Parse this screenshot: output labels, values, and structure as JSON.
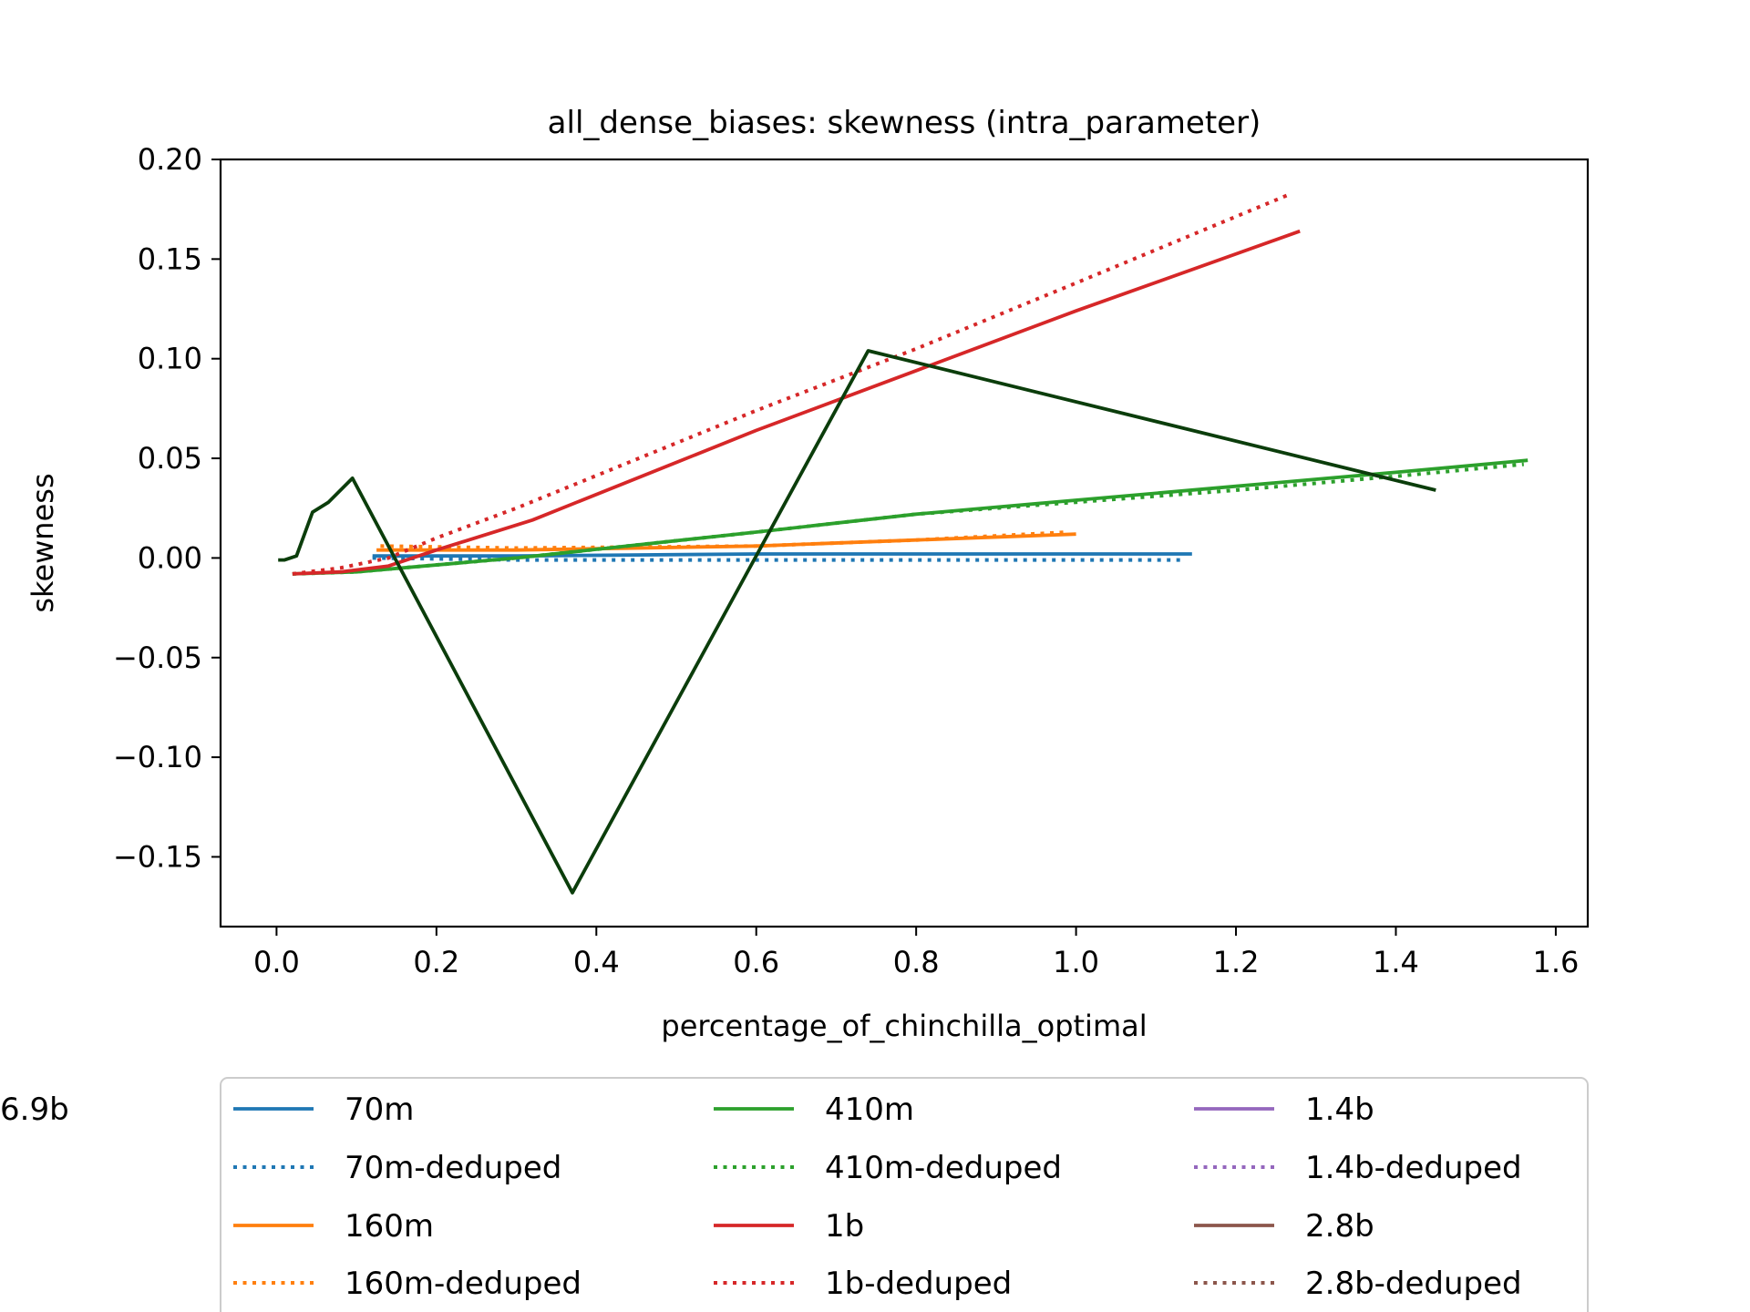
{
  "chart_data": {
    "type": "line",
    "title": "all_dense_biases: skewness (intra_parameter)",
    "xlabel": "percentage_of_chinchilla_optimal",
    "ylabel": "skewness",
    "xlim": [
      -0.07,
      1.64
    ],
    "ylim": [
      -0.185,
      0.2
    ],
    "xticks": [
      0.0,
      0.2,
      0.4,
      0.6,
      0.8,
      1.0,
      1.2,
      1.4,
      1.6
    ],
    "xtick_labels": [
      "0.0",
      "0.2",
      "0.4",
      "0.6",
      "0.8",
      "1.0",
      "1.2",
      "1.4",
      "1.6"
    ],
    "yticks": [
      0.2,
      0.15,
      0.1,
      0.05,
      0.0,
      -0.05,
      -0.1,
      -0.15
    ],
    "ytick_labels": [
      "0.20",
      "0.15",
      "0.10",
      "0.05",
      "0.00",
      "−0.05",
      "−0.10",
      "−0.15"
    ],
    "grid": false,
    "legend_position": "bottom-outside",
    "series": [
      {
        "name": "70m",
        "color": "#1f77b4",
        "style": "solid",
        "x": [
          0.12,
          0.3,
          0.6,
          1.0,
          1.145
        ],
        "y": [
          0.001,
          0.001,
          0.002,
          0.002,
          0.002
        ]
      },
      {
        "name": "70m-deduped",
        "color": "#1f77b4",
        "style": "dotted",
        "x": [
          0.12,
          0.3,
          0.6,
          1.0,
          1.135
        ],
        "y": [
          0.0,
          -0.001,
          -0.001,
          -0.001,
          -0.001
        ]
      },
      {
        "name": "160m",
        "color": "#ff7f0e",
        "style": "solid",
        "x": [
          0.125,
          0.3,
          0.6,
          0.8,
          1.0
        ],
        "y": [
          0.004,
          0.004,
          0.006,
          0.009,
          0.012
        ]
      },
      {
        "name": "160m-deduped",
        "color": "#ff7f0e",
        "style": "dotted",
        "x": [
          0.13,
          0.3,
          0.6,
          0.8,
          0.99
        ],
        "y": [
          0.006,
          0.005,
          0.006,
          0.009,
          0.013
        ]
      },
      {
        "name": "410m",
        "color": "#2ca02c",
        "style": "solid",
        "x": [
          0.02,
          0.1,
          0.3,
          0.6,
          0.8,
          1.0,
          1.2,
          1.4,
          1.565
        ],
        "y": [
          -0.008,
          -0.007,
          0.0,
          0.013,
          0.022,
          0.029,
          0.036,
          0.043,
          0.049
        ]
      },
      {
        "name": "410m-deduped",
        "color": "#2ca02c",
        "style": "dotted",
        "x": [
          0.02,
          0.1,
          0.3,
          0.6,
          0.8,
          1.0,
          1.2,
          1.4,
          1.56
        ],
        "y": [
          -0.008,
          -0.007,
          0.0,
          0.013,
          0.022,
          0.028,
          0.034,
          0.041,
          0.047
        ]
      },
      {
        "name": "1b",
        "color": "#d62728",
        "style": "solid",
        "x": [
          0.02,
          0.08,
          0.14,
          0.2,
          0.32,
          0.6,
          0.8,
          1.0,
          1.28
        ],
        "y": [
          -0.008,
          -0.007,
          -0.004,
          0.004,
          0.019,
          0.064,
          0.094,
          0.124,
          0.164
        ]
      },
      {
        "name": "1b-deduped",
        "color": "#d62728",
        "style": "dotted",
        "x": [
          0.02,
          0.08,
          0.14,
          0.2,
          0.3,
          0.6,
          0.8,
          1.0,
          1.27
        ],
        "y": [
          -0.008,
          -0.005,
          0.0,
          0.01,
          0.025,
          0.074,
          0.105,
          0.138,
          0.183
        ]
      },
      {
        "name": "1.4b",
        "color": "#9467bd",
        "style": "solid",
        "x": [],
        "y": []
      },
      {
        "name": "1.4b-deduped",
        "color": "#9467bd",
        "style": "dotted",
        "x": [],
        "y": []
      },
      {
        "name": "2.8b",
        "color": "#8c564b",
        "style": "solid",
        "x": [],
        "y": []
      },
      {
        "name": "2.8b-deduped",
        "color": "#8c564b",
        "style": "dotted",
        "x": [],
        "y": []
      },
      {
        "name": "6.9b",
        "color": "#0b3d0b",
        "style": "solid",
        "x": [
          0.002,
          0.01,
          0.025,
          0.045,
          0.065,
          0.095,
          0.37,
          0.74,
          1.45
        ],
        "y": [
          -0.001,
          -0.001,
          0.001,
          0.023,
          0.028,
          0.04,
          -0.168,
          0.104,
          0.034
        ]
      }
    ]
  }
}
